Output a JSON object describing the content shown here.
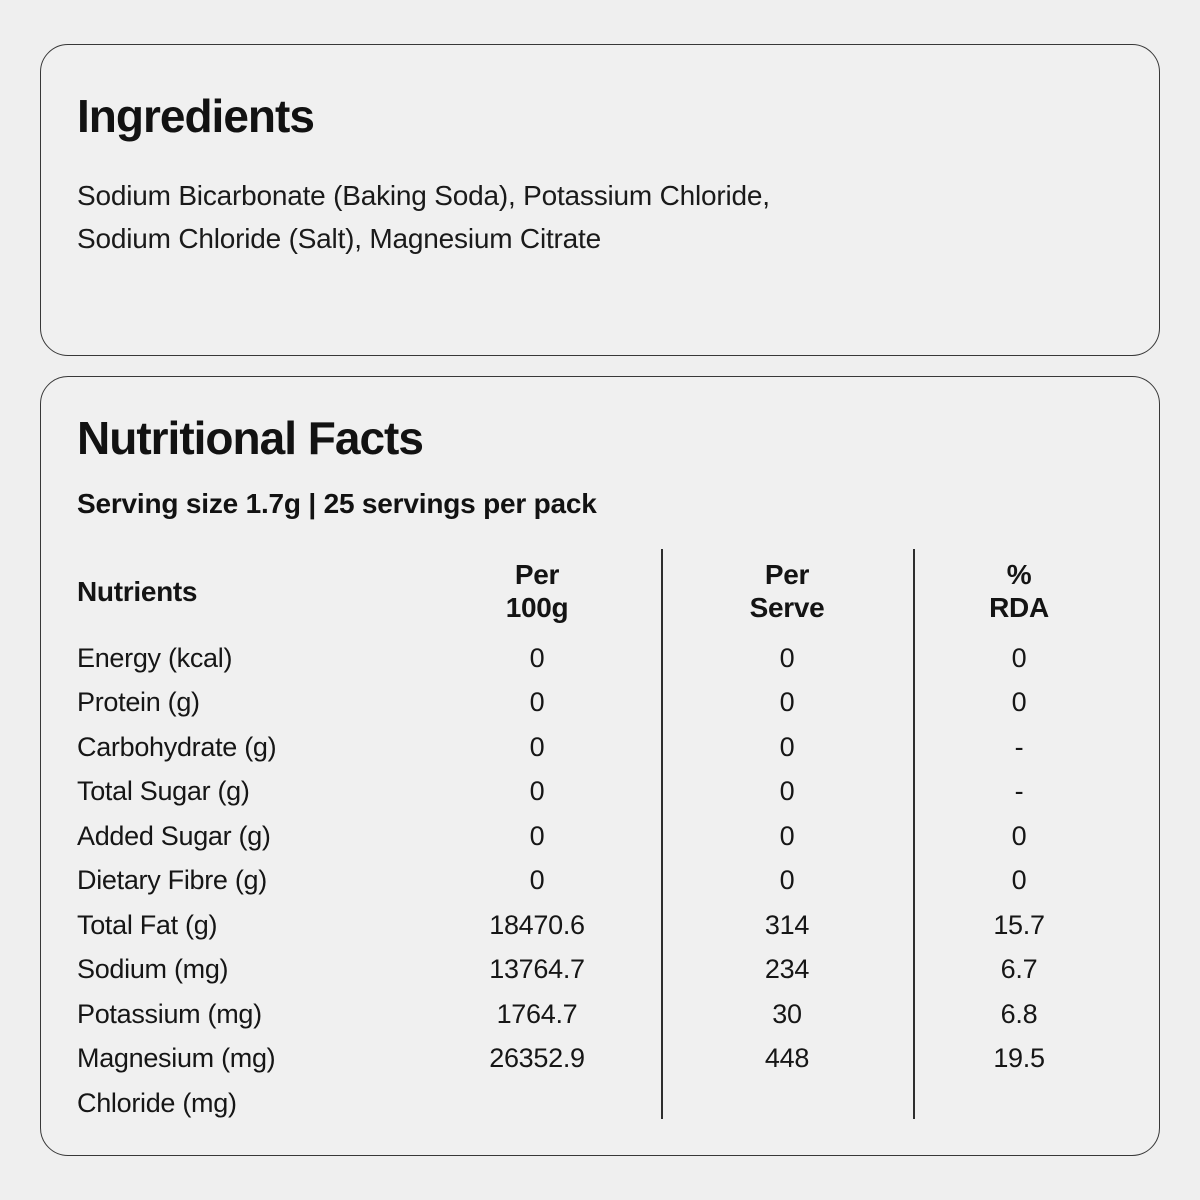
{
  "colors": {
    "page_background": "#efefef",
    "card_border": "#383838",
    "text": "#141414"
  },
  "ingredients_card": {
    "title": "Ingredients",
    "lines": [
      "Sodium Bicarbonate (Baking Soda), Potassium Chloride,",
      "Sodium Chloride (Salt), Magnesium Citrate"
    ]
  },
  "nutrition_card": {
    "title": "Nutritional Facts",
    "serving_info": "Serving size 1.7g | 25 servings per pack",
    "table": {
      "headers": {
        "nutrients": "Nutrients",
        "per_100g": "Per\n100g",
        "per_serve": "Per\nServe",
        "rda": "%\nRDA"
      },
      "rows": [
        {
          "label": "Energy (kcal)",
          "per_100g": "0",
          "per_serve": "0",
          "rda": "0"
        },
        {
          "label": "Protein (g)",
          "per_100g": "0",
          "per_serve": "0",
          "rda": "0"
        },
        {
          "label": "Carbohydrate (g)",
          "per_100g": "0",
          "per_serve": "0",
          "rda": "-"
        },
        {
          "label": "Total Sugar (g)",
          "per_100g": "0",
          "per_serve": "0",
          "rda": "-"
        },
        {
          "label": "Added Sugar (g)",
          "per_100g": "0",
          "per_serve": "0",
          "rda": "0"
        },
        {
          "label": "Dietary Fibre (g)",
          "per_100g": "0",
          "per_serve": "0",
          "rda": "0"
        },
        {
          "label": "Total Fat (g)",
          "per_100g": "18470.6",
          "per_serve": "314",
          "rda": "15.7"
        },
        {
          "label": "Sodium (mg)",
          "per_100g": "13764.7",
          "per_serve": "234",
          "rda": "6.7"
        },
        {
          "label": "Potassium (mg)",
          "per_100g": "1764.7",
          "per_serve": "30",
          "rda": "6.8"
        },
        {
          "label": "Magnesium (mg)",
          "per_100g": "26352.9",
          "per_serve": "448",
          "rda": "19.5"
        },
        {
          "label": "Chloride (mg)",
          "per_100g": "",
          "per_serve": "",
          "rda": ""
        }
      ]
    }
  }
}
